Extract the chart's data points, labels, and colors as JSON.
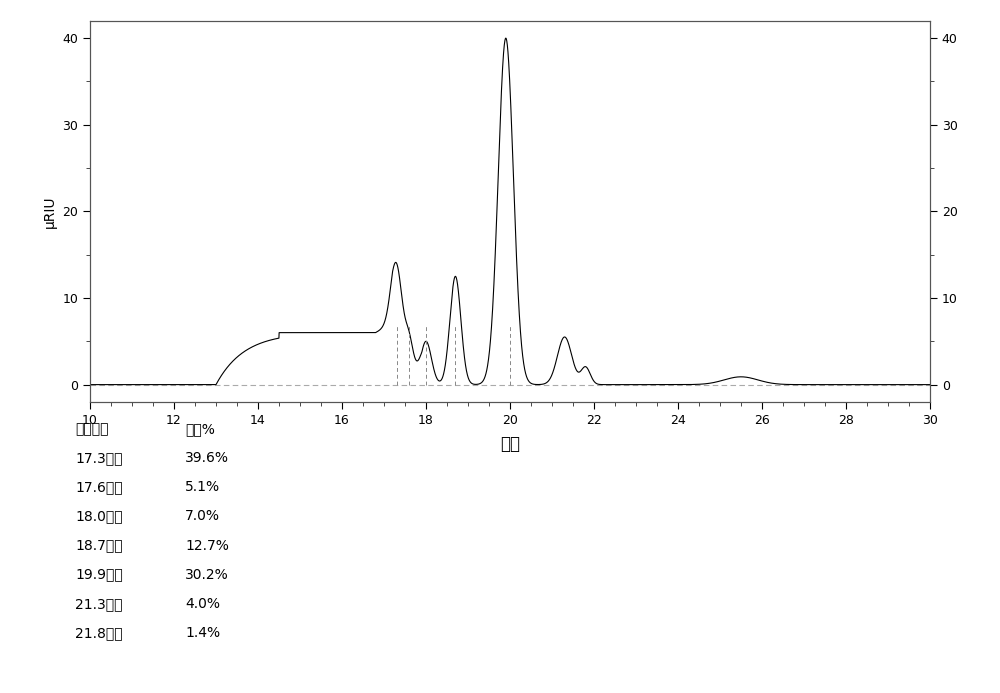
{
  "title": "",
  "xlabel": "分钟",
  "ylabel": "μRIU",
  "xlim": [
    10,
    30
  ],
  "ylim": [
    -2,
    42
  ],
  "xticks": [
    10,
    12,
    14,
    16,
    18,
    20,
    22,
    24,
    26,
    28,
    30
  ],
  "yticks": [
    0,
    10,
    20,
    30,
    40
  ],
  "peaks": [
    {
      "time": 17.3,
      "area_pct": "39.6%"
    },
    {
      "time": 17.6,
      "area_pct": "5.1%"
    },
    {
      "time": 18.0,
      "area_pct": "7.0%"
    },
    {
      "time": 18.7,
      "area_pct": "12.7%"
    },
    {
      "time": 19.9,
      "area_pct": "30.2%"
    },
    {
      "time": 21.3,
      "area_pct": "4.0%"
    },
    {
      "time": 21.8,
      "area_pct": "1.4%"
    }
  ],
  "table_header": [
    "保持时间",
    "面积%"
  ],
  "vline_positions": [
    17.3,
    17.6,
    18.0,
    18.7,
    20.0
  ],
  "line_color": "#000000",
  "bg_color": "#ffffff",
  "vline_color": "#888888",
  "dashed_line_color": "#aaaaaa",
  "border_color": "#555555"
}
